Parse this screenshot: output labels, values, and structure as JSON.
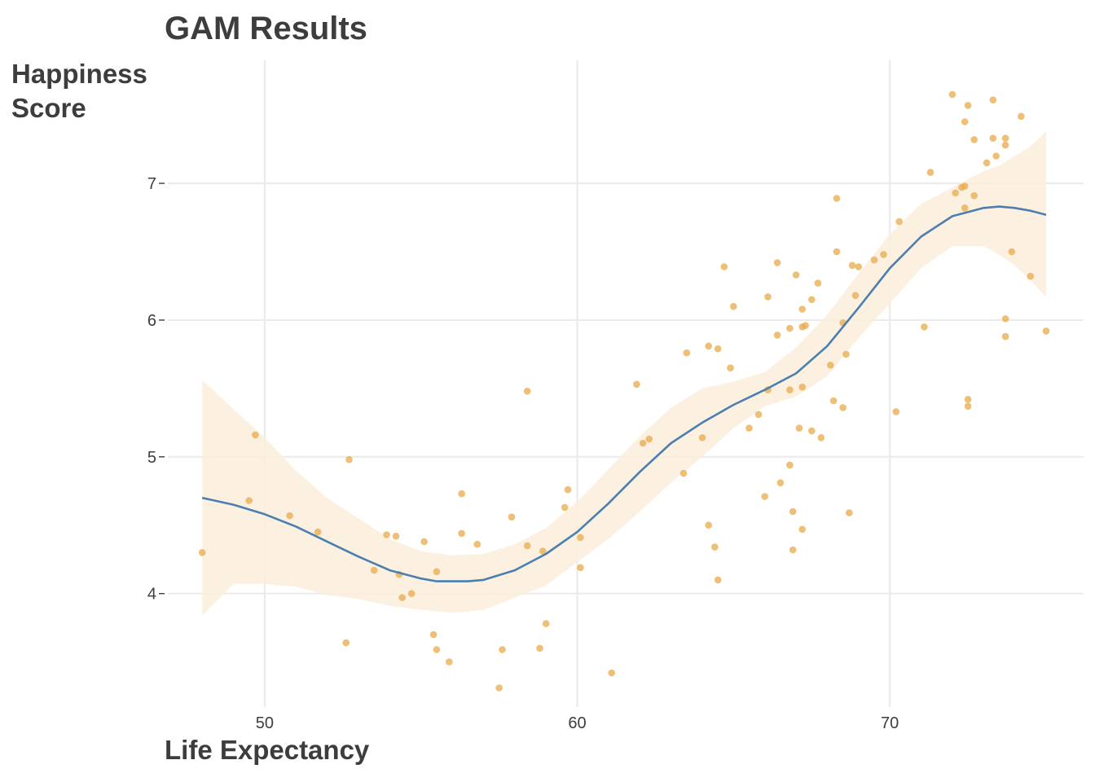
{
  "chart_data": {
    "type": "scatter",
    "title": "GAM Results",
    "xlabel": "Life Expectancy",
    "ylabel_lines": [
      "Happiness",
      "Score"
    ],
    "xlim": [
      46.9,
      76.2
    ],
    "ylim": [
      3.17,
      7.9
    ],
    "x_ticks": [
      50,
      60,
      70
    ],
    "x_tick_labels": [
      "50",
      "60",
      "70"
    ],
    "y_ticks": [
      4,
      5,
      6,
      7
    ],
    "y_tick_labels": [
      "4 -",
      "5 -",
      "6 -",
      "7 -"
    ],
    "grid": true,
    "colors": {
      "points": "#e8a94a",
      "smooth": "#4a7fb0",
      "ribbon": "#fcefdc",
      "grid": "#ebebeb"
    },
    "points": [
      [
        48.0,
        4.3
      ],
      [
        49.5,
        4.68
      ],
      [
        49.7,
        5.16
      ],
      [
        50.8,
        4.57
      ],
      [
        51.7,
        4.45
      ],
      [
        52.6,
        3.64
      ],
      [
        52.7,
        4.98
      ],
      [
        53.5,
        4.17
      ],
      [
        53.9,
        4.43
      ],
      [
        54.2,
        4.42
      ],
      [
        54.3,
        4.14
      ],
      [
        54.4,
        3.97
      ],
      [
        54.7,
        4.0
      ],
      [
        55.1,
        4.38
      ],
      [
        55.4,
        3.7
      ],
      [
        55.5,
        4.16
      ],
      [
        55.5,
        3.59
      ],
      [
        55.9,
        3.5
      ],
      [
        56.3,
        4.73
      ],
      [
        56.3,
        4.44
      ],
      [
        56.8,
        4.36
      ],
      [
        57.5,
        3.31
      ],
      [
        57.6,
        3.59
      ],
      [
        57.9,
        4.56
      ],
      [
        58.4,
        5.48
      ],
      [
        58.4,
        4.35
      ],
      [
        58.8,
        3.6
      ],
      [
        59.0,
        3.78
      ],
      [
        58.9,
        4.31
      ],
      [
        59.6,
        4.63
      ],
      [
        59.7,
        4.76
      ],
      [
        60.1,
        4.41
      ],
      [
        60.1,
        4.19
      ],
      [
        61.1,
        3.42
      ],
      [
        61.9,
        5.53
      ],
      [
        62.1,
        5.1
      ],
      [
        62.3,
        5.13
      ],
      [
        63.4,
        4.88
      ],
      [
        63.5,
        5.76
      ],
      [
        64.0,
        5.14
      ],
      [
        64.2,
        5.81
      ],
      [
        64.2,
        4.5
      ],
      [
        64.4,
        4.34
      ],
      [
        64.5,
        4.1
      ],
      [
        64.5,
        5.79
      ],
      [
        64.7,
        6.39
      ],
      [
        64.9,
        5.65
      ],
      [
        65.0,
        6.1
      ],
      [
        65.5,
        5.21
      ],
      [
        65.8,
        5.31
      ],
      [
        66.0,
        4.71
      ],
      [
        66.1,
        6.17
      ],
      [
        66.1,
        5.49
      ],
      [
        66.4,
        6.42
      ],
      [
        66.4,
        5.89
      ],
      [
        66.5,
        4.81
      ],
      [
        66.8,
        5.94
      ],
      [
        66.8,
        5.49
      ],
      [
        66.8,
        4.94
      ],
      [
        66.9,
        4.6
      ],
      [
        66.9,
        4.32
      ],
      [
        67.0,
        6.33
      ],
      [
        67.1,
        5.21
      ],
      [
        67.2,
        6.08
      ],
      [
        67.2,
        5.95
      ],
      [
        67.2,
        5.51
      ],
      [
        67.2,
        4.47
      ],
      [
        67.3,
        5.96
      ],
      [
        67.5,
        6.15
      ],
      [
        67.5,
        5.19
      ],
      [
        67.7,
        6.27
      ],
      [
        67.8,
        5.14
      ],
      [
        68.1,
        5.67
      ],
      [
        68.2,
        5.41
      ],
      [
        68.3,
        6.89
      ],
      [
        68.3,
        6.5
      ],
      [
        68.5,
        5.98
      ],
      [
        68.5,
        5.36
      ],
      [
        68.6,
        5.75
      ],
      [
        68.7,
        4.59
      ],
      [
        68.8,
        6.4
      ],
      [
        68.9,
        6.18
      ],
      [
        69.0,
        6.39
      ],
      [
        69.5,
        6.44
      ],
      [
        69.8,
        6.48
      ],
      [
        70.2,
        5.33
      ],
      [
        70.3,
        6.72
      ],
      [
        71.1,
        5.95
      ],
      [
        71.3,
        7.08
      ],
      [
        72.0,
        7.65
      ],
      [
        72.1,
        6.93
      ],
      [
        72.3,
        6.97
      ],
      [
        72.4,
        6.98
      ],
      [
        72.4,
        6.82
      ],
      [
        72.4,
        7.45
      ],
      [
        72.5,
        7.57
      ],
      [
        72.5,
        5.42
      ],
      [
        72.5,
        5.37
      ],
      [
        72.7,
        7.32
      ],
      [
        72.7,
        6.91
      ],
      [
        73.1,
        7.15
      ],
      [
        73.3,
        7.61
      ],
      [
        73.3,
        7.33
      ],
      [
        73.4,
        7.2
      ],
      [
        73.7,
        7.33
      ],
      [
        73.7,
        7.28
      ],
      [
        73.7,
        6.01
      ],
      [
        73.7,
        5.88
      ],
      [
        73.9,
        6.5
      ],
      [
        74.2,
        7.49
      ],
      [
        74.5,
        6.32
      ],
      [
        75.0,
        5.92
      ]
    ],
    "smooth": [
      [
        48.0,
        4.7
      ],
      [
        49.0,
        4.65
      ],
      [
        50.0,
        4.58
      ],
      [
        51.0,
        4.49
      ],
      [
        52.0,
        4.38
      ],
      [
        53.0,
        4.27
      ],
      [
        54.0,
        4.17
      ],
      [
        55.0,
        4.11
      ],
      [
        55.5,
        4.09
      ],
      [
        56.0,
        4.09
      ],
      [
        56.5,
        4.09
      ],
      [
        57.0,
        4.1
      ],
      [
        58.0,
        4.17
      ],
      [
        59.0,
        4.29
      ],
      [
        60.0,
        4.45
      ],
      [
        61.0,
        4.66
      ],
      [
        62.0,
        4.89
      ],
      [
        63.0,
        5.1
      ],
      [
        64.0,
        5.25
      ],
      [
        65.0,
        5.38
      ],
      [
        66.0,
        5.49
      ],
      [
        67.0,
        5.61
      ],
      [
        68.0,
        5.81
      ],
      [
        69.0,
        6.09
      ],
      [
        70.0,
        6.38
      ],
      [
        71.0,
        6.61
      ],
      [
        72.0,
        6.76
      ],
      [
        73.0,
        6.82
      ],
      [
        73.5,
        6.83
      ],
      [
        74.0,
        6.82
      ],
      [
        74.5,
        6.8
      ],
      [
        75.0,
        6.77
      ]
    ],
    "ribbon_upper": [
      [
        48.0,
        5.56
      ],
      [
        49.0,
        5.35
      ],
      [
        50.0,
        5.14
      ],
      [
        51.0,
        4.9
      ],
      [
        52.0,
        4.7
      ],
      [
        53.0,
        4.55
      ],
      [
        54.0,
        4.4
      ],
      [
        55.0,
        4.31
      ],
      [
        56.0,
        4.28
      ],
      [
        57.0,
        4.29
      ],
      [
        58.0,
        4.36
      ],
      [
        59.0,
        4.48
      ],
      [
        60.0,
        4.67
      ],
      [
        61.0,
        4.91
      ],
      [
        62.0,
        5.15
      ],
      [
        63.0,
        5.36
      ],
      [
        64.0,
        5.5
      ],
      [
        65.0,
        5.55
      ],
      [
        66.0,
        5.62
      ],
      [
        67.0,
        5.8
      ],
      [
        68.0,
        6.04
      ],
      [
        69.0,
        6.34
      ],
      [
        70.0,
        6.63
      ],
      [
        71.0,
        6.85
      ],
      [
        72.0,
        6.97
      ],
      [
        73.0,
        7.09
      ],
      [
        73.5,
        7.13
      ],
      [
        74.0,
        7.2
      ],
      [
        74.5,
        7.27
      ],
      [
        75.0,
        7.38
      ]
    ],
    "ribbon_lower": [
      [
        48.0,
        3.84
      ],
      [
        49.0,
        4.07
      ],
      [
        50.0,
        4.07
      ],
      [
        51.0,
        4.05
      ],
      [
        52.0,
        3.99
      ],
      [
        53.0,
        3.96
      ],
      [
        54.0,
        3.91
      ],
      [
        55.0,
        3.88
      ],
      [
        56.0,
        3.86
      ],
      [
        57.0,
        3.88
      ],
      [
        58.0,
        3.97
      ],
      [
        59.0,
        4.06
      ],
      [
        60.0,
        4.23
      ],
      [
        61.0,
        4.4
      ],
      [
        62.0,
        4.6
      ],
      [
        63.0,
        4.81
      ],
      [
        64.0,
        5.0
      ],
      [
        65.0,
        5.21
      ],
      [
        66.0,
        5.37
      ],
      [
        67.0,
        5.44
      ],
      [
        68.0,
        5.59
      ],
      [
        69.0,
        5.87
      ],
      [
        70.0,
        6.12
      ],
      [
        71.0,
        6.38
      ],
      [
        72.0,
        6.54
      ],
      [
        73.0,
        6.54
      ],
      [
        73.5,
        6.48
      ],
      [
        74.0,
        6.4
      ],
      [
        74.5,
        6.29
      ],
      [
        75.0,
        6.17
      ]
    ]
  }
}
